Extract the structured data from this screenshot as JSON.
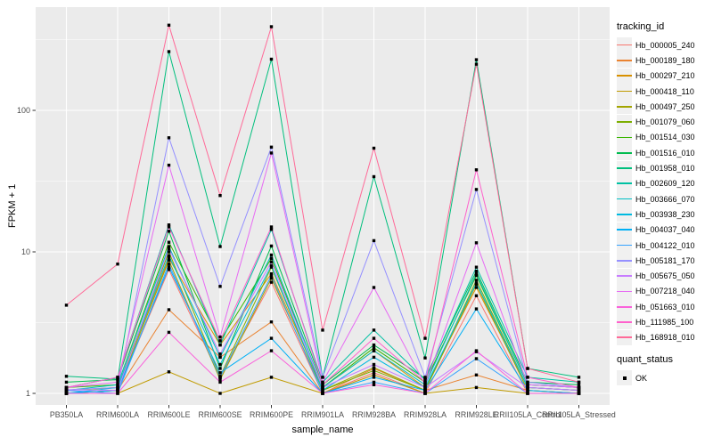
{
  "figure": {
    "background": "#FFFFFF",
    "panel_background": "#EBEBEB",
    "grid_major_color": "#FFFFFF",
    "grid_minor_color": "#F5F5F5",
    "tick_color": "#333333",
    "tick_label_color": "#4D4D4D",
    "point_color": "#000000"
  },
  "axes": {
    "x_title": "sample_name",
    "y_title": "FPKM + 1",
    "y_tick_labels": [
      "1",
      "10",
      "100"
    ],
    "y_scale": "log10"
  },
  "legend": {
    "tracking_title": "tracking_id",
    "quant_title": "quant_status",
    "quant_items": [
      {
        "label": "OK",
        "marker": "black-square"
      }
    ],
    "position": "right"
  },
  "chart_data": {
    "type": "line",
    "title": "",
    "xlabel": "sample_name",
    "ylabel": "FPKM + 1",
    "y_scale": "log10",
    "ylim": [
      0.83,
      540
    ],
    "y_major_ticks": [
      1,
      10,
      100
    ],
    "y_minor_ticks": [
      3.1623,
      31.623,
      316.23
    ],
    "grid": true,
    "legend_position": "right",
    "point_marker": "black-square",
    "x_categories": [
      "PB350LA",
      "RRIM600LA",
      "RRIM600LE",
      "RRIM600SE",
      "RRIM600PE",
      "RRIM901LA",
      "RRIM928BA",
      "RRIM928LA",
      "RRIM928LE",
      "RRII105LA_Control",
      "RRII105LA_Stressed"
    ],
    "series": [
      {
        "name": "Hb_000005_240",
        "color": "#F8766D",
        "values": [
          1.0,
          1.05,
          7.5,
          1.3,
          6.1,
          1.0,
          1.4,
          1.0,
          4.9,
          1.0,
          1.0
        ]
      },
      {
        "name": "Hb_000189_180",
        "color": "#EA8331",
        "values": [
          1.0,
          1.05,
          3.9,
          1.8,
          3.2,
          1.0,
          1.5,
          1.05,
          1.35,
          1.05,
          1.0
        ]
      },
      {
        "name": "Hb_000297_210",
        "color": "#D89000",
        "values": [
          1.05,
          1.1,
          9.0,
          2.2,
          7.0,
          1.1,
          2.0,
          1.1,
          5.6,
          1.1,
          1.05
        ]
      },
      {
        "name": "Hb_000418_110",
        "color": "#C09B00",
        "values": [
          1.0,
          1.0,
          1.42,
          1.0,
          1.3,
          1.0,
          1.35,
          1.0,
          1.1,
          1.0,
          1.0
        ]
      },
      {
        "name": "Hb_000497_250",
        "color": "#A3A500",
        "values": [
          1.0,
          1.05,
          8.7,
          1.25,
          6.5,
          1.05,
          1.52,
          1.05,
          5.9,
          1.05,
          1.0
        ]
      },
      {
        "name": "Hb_001079_060",
        "color": "#7CAE00",
        "values": [
          1.05,
          1.1,
          10.0,
          1.32,
          7.8,
          1.05,
          1.45,
          1.05,
          6.3,
          1.1,
          1.05
        ]
      },
      {
        "name": "Hb_001514_030",
        "color": "#39B600",
        "values": [
          1.1,
          1.15,
          11.7,
          2.35,
          9.0,
          1.1,
          2.1,
          1.2,
          6.8,
          1.15,
          1.1
        ]
      },
      {
        "name": "Hb_001516_010",
        "color": "#00BB4E",
        "values": [
          1.2,
          1.25,
          14.0,
          1.5,
          11.0,
          1.15,
          2.2,
          1.28,
          7.3,
          1.2,
          1.15
        ]
      },
      {
        "name": "Hb_001958_010",
        "color": "#00BF7D",
        "values": [
          1.32,
          1.26,
          260,
          10.9,
          230,
          1.3,
          34,
          1.78,
          228,
          1.5,
          1.3
        ]
      },
      {
        "name": "Hb_002609_120",
        "color": "#00C1A3",
        "values": [
          1.1,
          1.3,
          15.5,
          2.2,
          14.4,
          1.2,
          2.8,
          1.25,
          7.8,
          1.3,
          1.2
        ]
      },
      {
        "name": "Hb_003666_070",
        "color": "#00BFC4",
        "values": [
          1.05,
          1.15,
          10.9,
          1.8,
          9.5,
          1.1,
          2.0,
          1.15,
          7.0,
          1.15,
          1.1
        ]
      },
      {
        "name": "Hb_003938_230",
        "color": "#00BAE0",
        "values": [
          1.0,
          1.1,
          9.4,
          1.6,
          8.0,
          1.05,
          1.8,
          1.1,
          6.0,
          1.1,
          1.05
        ]
      },
      {
        "name": "Hb_004037_040",
        "color": "#00B0F6",
        "values": [
          1.0,
          1.05,
          7.8,
          1.4,
          2.45,
          1.0,
          1.3,
          1.05,
          3.95,
          1.05,
          1.0
        ]
      },
      {
        "name": "Hb_004122_010",
        "color": "#35A2FF",
        "values": [
          1.05,
          1.0,
          8.2,
          1.3,
          6.8,
          1.0,
          1.2,
          1.0,
          1.76,
          1.0,
          1.0
        ]
      },
      {
        "name": "Hb_005181_170",
        "color": "#9590FF",
        "values": [
          1.06,
          1.1,
          64,
          5.7,
          55,
          1.3,
          12,
          1.3,
          27.6,
          1.2,
          1.1
        ]
      },
      {
        "name": "Hb_005675_050",
        "color": "#C77CFF",
        "values": [
          1.06,
          1.05,
          10.5,
          1.9,
          8.5,
          1.1,
          1.6,
          1.1,
          1.97,
          1.1,
          1.05
        ]
      },
      {
        "name": "Hb_007218_040",
        "color": "#E76BF3",
        "values": [
          1.1,
          1.2,
          41,
          2.5,
          50,
          1.2,
          5.6,
          1.15,
          11.6,
          1.15,
          1.1
        ]
      },
      {
        "name": "Hb_051663_010",
        "color": "#FA62DB",
        "values": [
          1.0,
          1.0,
          2.7,
          1.2,
          2.0,
          1.0,
          1.15,
          1.0,
          2.0,
          1.0,
          1.0
        ]
      },
      {
        "name": "Hb_111985_100",
        "color": "#FF61CC",
        "values": [
          1.1,
          1.3,
          15.0,
          2.35,
          15.0,
          1.15,
          2.45,
          1.2,
          38,
          1.3,
          1.1
        ]
      },
      {
        "name": "Hb_168918_010",
        "color": "#FF6A98",
        "values": [
          4.2,
          8.2,
          400,
          25,
          390,
          2.8,
          54,
          2.45,
          212,
          1.5,
          1.2
        ]
      }
    ]
  }
}
